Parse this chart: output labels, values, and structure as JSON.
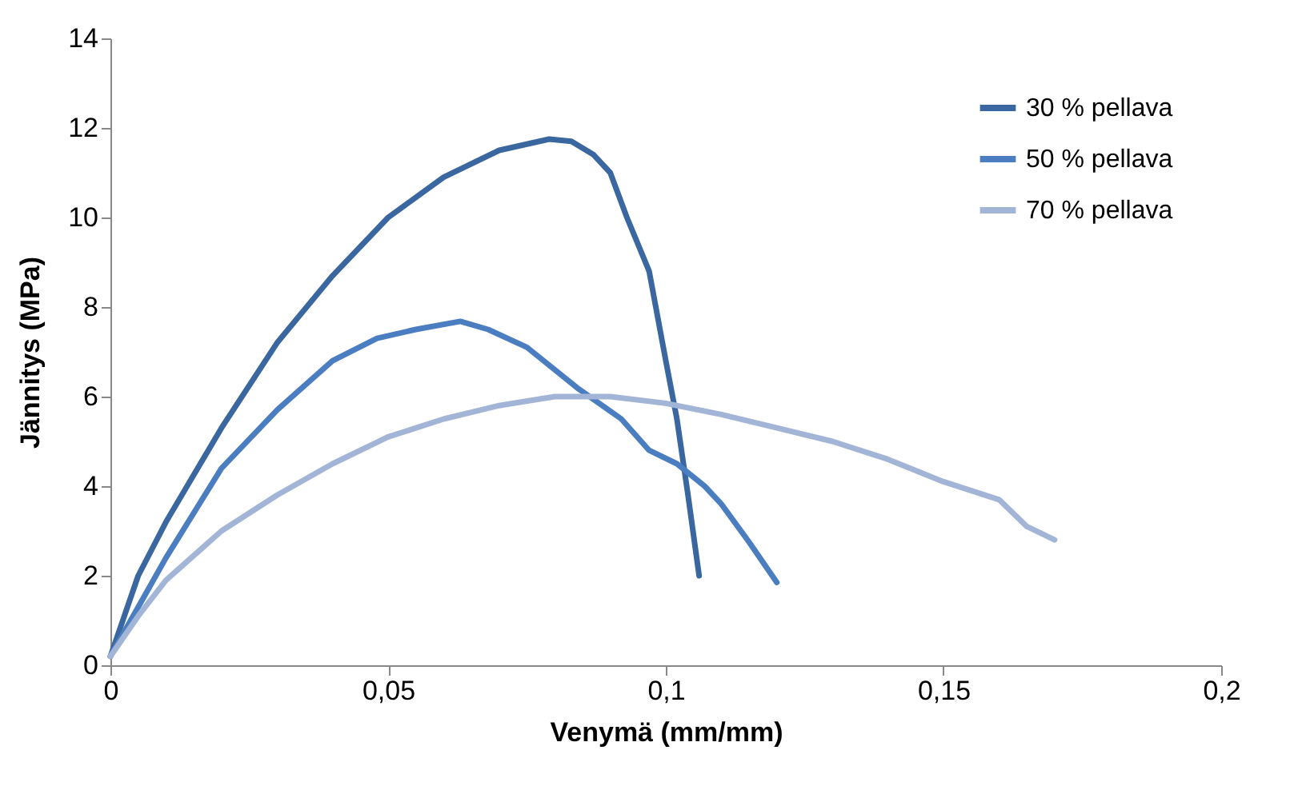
{
  "chart_data": {
    "type": "line",
    "xlabel": "Venymä (mm/mm)",
    "ylabel": "Jännitys  (MPa)",
    "xlim": [
      0,
      0.2
    ],
    "ylim": [
      0,
      14
    ],
    "xticks": [
      0,
      {
        "value": 0.05,
        "label": "0,05"
      },
      {
        "value": 0.1,
        "label": "0,1"
      },
      {
        "value": 0.15,
        "label": "0,15"
      },
      {
        "value": 0.2,
        "label": "0,2"
      }
    ],
    "yticks": [
      0,
      2,
      4,
      6,
      8,
      10,
      12,
      14
    ],
    "grid": false,
    "legend": "top right",
    "marker": "none",
    "line_style": "solid",
    "series": [
      {
        "name": "30 % pellava",
        "color": "#3a67a0",
        "x": [
          0,
          0.005,
          0.01,
          0.02,
          0.03,
          0.04,
          0.05,
          0.06,
          0.07,
          0.079,
          0.083,
          0.087,
          0.09,
          0.093,
          0.097,
          0.1,
          0.102,
          0.104,
          0.106
        ],
        "values": [
          0.2,
          2.0,
          3.2,
          5.3,
          7.2,
          8.7,
          10.0,
          10.9,
          11.5,
          11.75,
          11.7,
          11.4,
          11.0,
          10.0,
          8.8,
          6.8,
          5.5,
          3.8,
          2.0
        ]
      },
      {
        "name": "50 % pellava",
        "color": "#4a7ec0",
        "x": [
          0,
          0.005,
          0.01,
          0.02,
          0.03,
          0.04,
          0.048,
          0.055,
          0.063,
          0.068,
          0.075,
          0.084,
          0.092,
          0.097,
          0.102,
          0.107,
          0.11,
          0.115,
          0.12
        ],
        "values": [
          0.2,
          1.3,
          2.4,
          4.4,
          5.7,
          6.8,
          7.3,
          7.5,
          7.68,
          7.5,
          7.1,
          6.2,
          5.5,
          4.8,
          4.5,
          4.0,
          3.6,
          2.75,
          1.85
        ]
      },
      {
        "name": "70 % pellava",
        "color": "#a3b5d6",
        "x": [
          0,
          0.005,
          0.01,
          0.02,
          0.03,
          0.04,
          0.05,
          0.06,
          0.07,
          0.08,
          0.09,
          0.1,
          0.11,
          0.12,
          0.13,
          0.14,
          0.15,
          0.16,
          0.165,
          0.17
        ],
        "values": [
          0.2,
          1.1,
          1.9,
          3.0,
          3.8,
          4.5,
          5.1,
          5.5,
          5.8,
          6.0,
          6.0,
          5.85,
          5.6,
          5.3,
          5.0,
          4.6,
          4.1,
          3.7,
          3.1,
          2.8
        ]
      }
    ]
  }
}
